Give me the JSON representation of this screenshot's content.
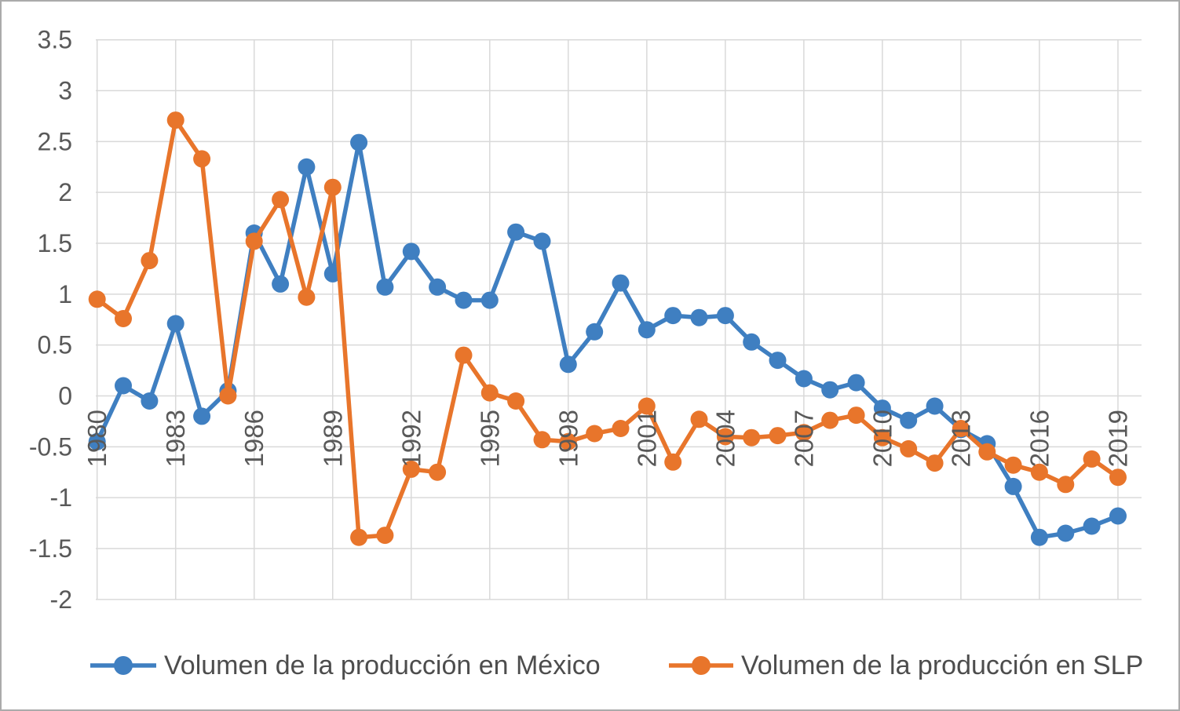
{
  "chart_data": {
    "type": "line",
    "x": [
      1980,
      1981,
      1982,
      1983,
      1984,
      1985,
      1986,
      1987,
      1988,
      1989,
      1990,
      1991,
      1992,
      1993,
      1994,
      1995,
      1996,
      1997,
      1998,
      1999,
      2000,
      2001,
      2002,
      2003,
      2004,
      2005,
      2006,
      2007,
      2008,
      2009,
      2010,
      2011,
      2012,
      2013,
      2014,
      2015,
      2016,
      2017,
      2018,
      2019
    ],
    "series": [
      {
        "name": "Volumen de la producción en México",
        "color": "#3F7FC1",
        "values": [
          -0.45,
          0.1,
          -0.05,
          0.71,
          -0.2,
          0.05,
          1.6,
          1.1,
          2.25,
          1.2,
          2.49,
          1.07,
          1.42,
          1.07,
          0.94,
          0.94,
          1.61,
          1.52,
          0.31,
          0.63,
          1.11,
          0.65,
          0.79,
          0.77,
          0.79,
          0.53,
          0.35,
          0.17,
          0.06,
          0.13,
          -0.12,
          -0.24,
          -0.1,
          -0.33,
          -0.47,
          -0.89,
          -1.39,
          -1.35,
          -1.28,
          -1.18
        ]
      },
      {
        "name": "Volumen de la producción en SLP",
        "color": "#E8752B",
        "values": [
          0.95,
          0.76,
          1.33,
          2.71,
          2.33,
          0.0,
          1.52,
          1.93,
          0.97,
          2.05,
          -1.39,
          -1.37,
          -0.72,
          -0.75,
          0.4,
          0.03,
          -0.05,
          -0.43,
          -0.45,
          -0.37,
          -0.32,
          -0.1,
          -0.65,
          -0.23,
          -0.4,
          -0.41,
          -0.39,
          -0.36,
          -0.24,
          -0.19,
          -0.41,
          -0.52,
          -0.66,
          -0.32,
          -0.55,
          -0.68,
          -0.75,
          -0.87,
          -0.62,
          -0.8
        ]
      }
    ],
    "title": "",
    "xlabel": "",
    "ylabel": "",
    "ylim": [
      -2,
      3.5
    ],
    "ytick_step": 0.5,
    "xticks": [
      1980,
      1983,
      1986,
      1989,
      1992,
      1995,
      1998,
      2001,
      2004,
      2007,
      2010,
      2013,
      2016,
      2019
    ],
    "x_tick_labels": [
      "1980",
      "1983",
      "1986",
      "1989",
      "1992",
      "1995",
      "1998",
      "2001",
      "2004",
      "2007",
      "2010",
      "2013",
      "2016",
      "2019"
    ],
    "yticks": [
      3.5,
      3,
      2.5,
      2,
      1.5,
      1,
      0.5,
      0,
      -0.5,
      -1,
      -1.5,
      -2
    ],
    "y_tick_labels": [
      "3.5",
      "3",
      "2.5",
      "2",
      "1.5",
      "1",
      "0.5",
      "0",
      "-0.5",
      "-1",
      "-1.5",
      "-2"
    ],
    "grid": true,
    "legend_position": "bottom"
  },
  "styles": {
    "grid_color": "#D9D9D9",
    "tick_text_color": "#595959",
    "legend_text_color": "#4D4D4D",
    "figure_border_color": "#ABABAB",
    "background_color": "#FFFFFF"
  }
}
